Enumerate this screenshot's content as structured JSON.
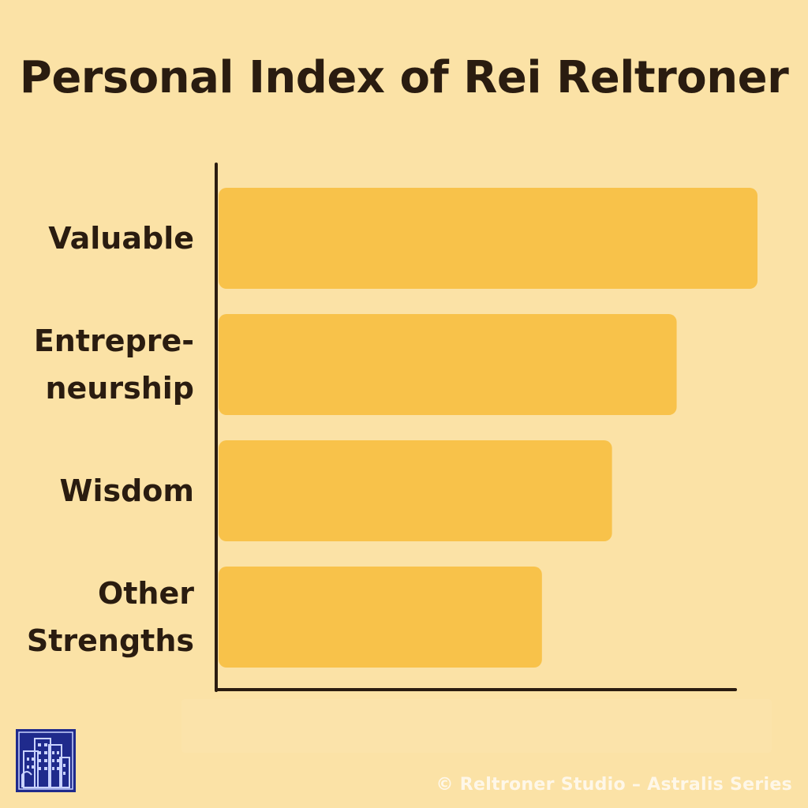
{
  "chart_data": {
    "type": "bar",
    "orientation": "horizontal",
    "title": "Personal Index of Rei Reltroner",
    "categories": [
      [
        "Valuable"
      ],
      [
        "Entrepre-",
        "neurship"
      ],
      [
        "Wisdom"
      ],
      [
        "Other",
        "Strengths"
      ]
    ],
    "values": [
      100,
      85,
      73,
      60
    ],
    "xlim": [
      0,
      100
    ],
    "grid": false,
    "legend": "none",
    "bar_color": "#f8c24a",
    "axis_color": "#2a1c10"
  },
  "footer": {
    "logo_icon": "city-buildings-icon",
    "credit": "© Reltroner Studio – Astralis Series"
  }
}
